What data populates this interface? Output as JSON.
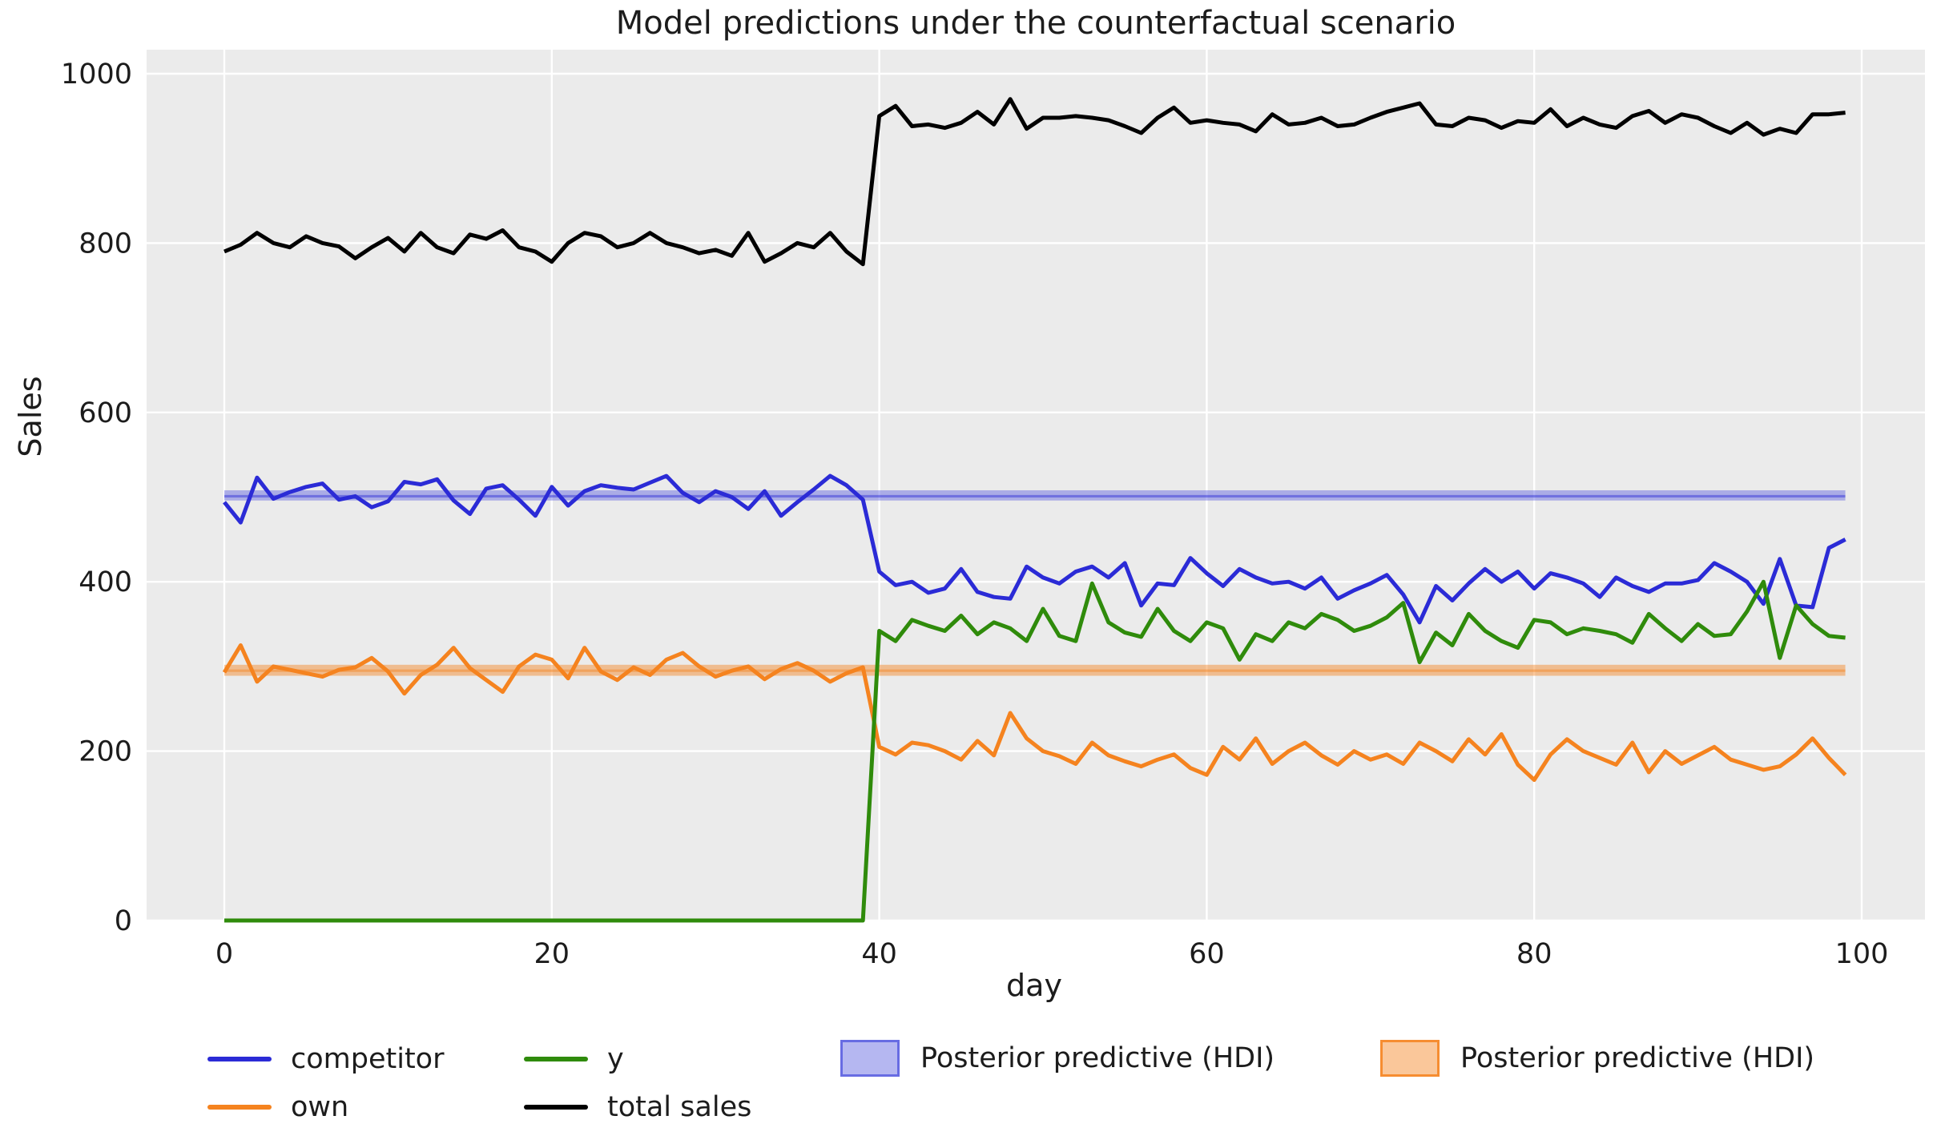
{
  "figure": {
    "title": "Model predictions under the counterfactual scenario"
  },
  "chart_data": {
    "type": "line",
    "title": "Model predictions under the counterfactual scenario",
    "xlabel": "day",
    "ylabel": "Sales",
    "x": {
      "start": 0,
      "end": 99,
      "step": 1
    },
    "xticks": [
      0,
      20,
      40,
      60,
      80,
      100
    ],
    "yticks": [
      0,
      200,
      400,
      600,
      800,
      1000
    ],
    "xlim": [
      -5,
      104
    ],
    "ylim": [
      0,
      1028
    ],
    "grid": true,
    "background": "#ebebeb",
    "gridcolor": "#ffffff",
    "series": [
      {
        "name": "competitor",
        "color": "#2b2bd6",
        "values": [
          494,
          470,
          523,
          498,
          506,
          512,
          516,
          497,
          501,
          488,
          495,
          518,
          515,
          521,
          496,
          480,
          510,
          514,
          497,
          478,
          512,
          490,
          507,
          514,
          511,
          509,
          517,
          525,
          505,
          494,
          507,
          500,
          486,
          507,
          478,
          494,
          509,
          525,
          514,
          497,
          412,
          396,
          400,
          387,
          392,
          415,
          388,
          382,
          380,
          418,
          405,
          398,
          412,
          418,
          405,
          422,
          372,
          398,
          396,
          428,
          410,
          395,
          415,
          405,
          398,
          400,
          392,
          405,
          380,
          390,
          398,
          408,
          385,
          352,
          395,
          378,
          398,
          415,
          400,
          412,
          392,
          410,
          405,
          398,
          382,
          405,
          395,
          388,
          398,
          398,
          402,
          422,
          412,
          400,
          374,
          427,
          372,
          370,
          440,
          450
        ]
      },
      {
        "name": "own",
        "color": "#f5831f",
        "values": [
          293,
          325,
          282,
          300,
          296,
          292,
          288,
          296,
          299,
          310,
          294,
          268,
          290,
          302,
          322,
          298,
          284,
          270,
          300,
          314,
          308,
          286,
          322,
          294,
          284,
          299,
          290,
          308,
          316,
          300,
          288,
          295,
          300,
          285,
          297,
          304,
          295,
          282,
          292,
          299,
          205,
          196,
          210,
          207,
          200,
          190,
          212,
          195,
          245,
          215,
          200,
          194,
          185,
          210,
          195,
          188,
          182,
          190,
          196,
          180,
          172,
          205,
          190,
          215,
          185,
          200,
          210,
          195,
          184,
          200,
          190,
          196,
          185,
          210,
          200,
          188,
          214,
          196,
          220,
          184,
          166,
          196,
          214,
          200,
          192,
          184,
          210,
          175,
          200,
          185,
          195,
          205,
          190,
          184,
          178,
          182,
          196,
          215,
          192,
          172
        ]
      },
      {
        "name": "y",
        "color": "#2f8b0b",
        "values": [
          0,
          0,
          0,
          0,
          0,
          0,
          0,
          0,
          0,
          0,
          0,
          0,
          0,
          0,
          0,
          0,
          0,
          0,
          0,
          0,
          0,
          0,
          0,
          0,
          0,
          0,
          0,
          0,
          0,
          0,
          0,
          0,
          0,
          0,
          0,
          0,
          0,
          0,
          0,
          0,
          342,
          330,
          355,
          348,
          342,
          360,
          338,
          352,
          345,
          330,
          368,
          336,
          330,
          398,
          352,
          340,
          335,
          368,
          342,
          330,
          352,
          345,
          308,
          338,
          330,
          352,
          345,
          362,
          355,
          342,
          348,
          358,
          375,
          305,
          340,
          325,
          362,
          342,
          330,
          322,
          355,
          352,
          338,
          345,
          342,
          338,
          328,
          362,
          345,
          330,
          350,
          336,
          338,
          365,
          400,
          310,
          372,
          350,
          336,
          334
        ]
      },
      {
        "name": "total sales",
        "color": "#000000",
        "values": [
          790,
          798,
          812,
          800,
          795,
          808,
          800,
          796,
          782,
          795,
          806,
          790,
          812,
          795,
          788,
          810,
          805,
          815,
          795,
          790,
          778,
          800,
          812,
          808,
          795,
          800,
          812,
          800,
          795,
          788,
          792,
          785,
          812,
          778,
          788,
          800,
          795,
          812,
          790,
          775,
          950,
          962,
          938,
          940,
          936,
          942,
          955,
          940,
          970,
          935,
          948,
          948,
          950,
          948,
          945,
          938,
          930,
          948,
          960,
          942,
          945,
          942,
          940,
          932,
          952,
          940,
          942,
          948,
          938,
          940,
          948,
          955,
          960,
          965,
          940,
          938,
          948,
          945,
          936,
          944,
          942,
          958,
          938,
          948,
          940,
          936,
          950,
          956,
          942,
          952,
          948,
          938,
          930,
          942,
          928,
          935,
          930,
          952,
          952,
          954
        ]
      }
    ],
    "hdi_bands": [
      {
        "name": "Posterior predictive (HDI)",
        "color": "#5a5fe0",
        "line_color": "#2b2bd6",
        "lo": 496,
        "hi": 508,
        "mean": 501,
        "x_start": 0,
        "x_end": 99
      },
      {
        "name": "Posterior predictive (HDI)",
        "color": "#f5831f",
        "line_color": "#f5831f",
        "lo": 289,
        "hi": 302,
        "mean": 295,
        "x_start": 0,
        "x_end": 99
      }
    ],
    "legend": {
      "position": "below",
      "entries": [
        {
          "label": "competitor",
          "type": "line",
          "color": "#2b2bd6"
        },
        {
          "label": "own",
          "type": "line",
          "color": "#f5831f"
        },
        {
          "label": "y",
          "type": "line",
          "color": "#2f8b0b"
        },
        {
          "label": "total sales",
          "type": "line",
          "color": "#000000"
        },
        {
          "label": "Posterior predictive (HDI)",
          "type": "patch",
          "color": "#5a5fe0"
        },
        {
          "label": "Posterior predictive (HDI)",
          "type": "patch",
          "color": "#f5831f"
        }
      ]
    }
  }
}
